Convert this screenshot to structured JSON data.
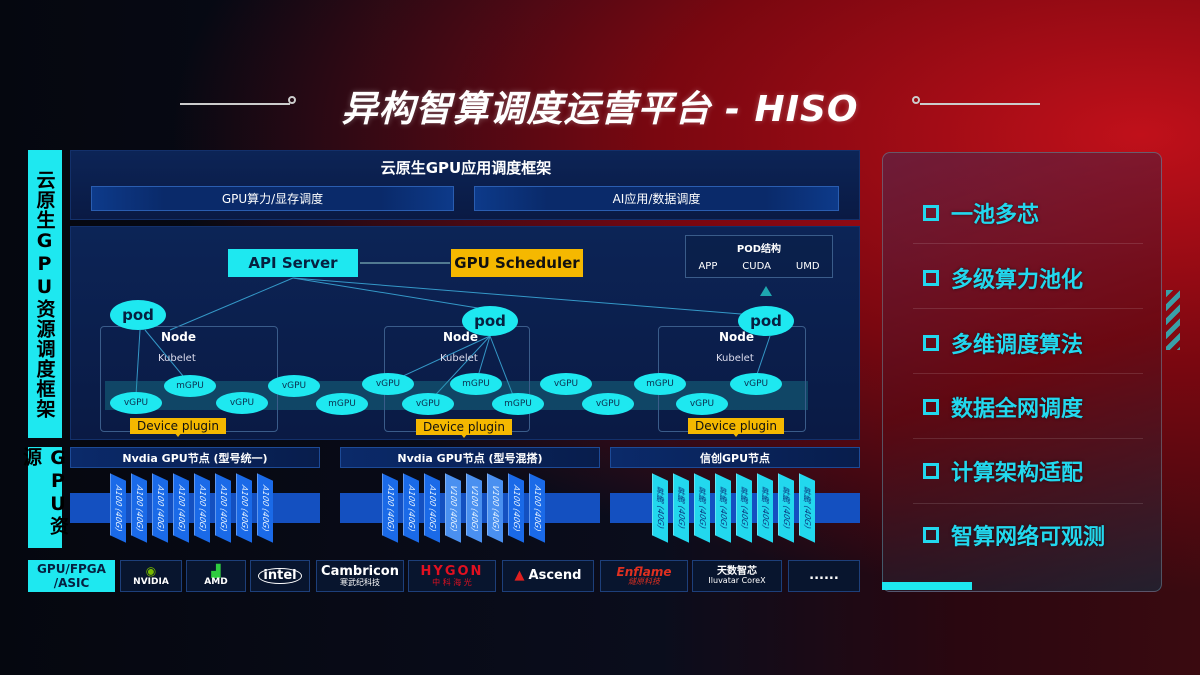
{
  "title": "异构智算调度运营平台 - HISO",
  "colors": {
    "cyan": "#1ee8f0",
    "yellow": "#f5b800",
    "blue": "#1450c0",
    "red": "#c0101a"
  },
  "left_labels": {
    "framework": "云原生GPU资源调度框架",
    "resources": "GPU资源",
    "hardware": "GPU/FPGA /ASIC"
  },
  "top_panel": {
    "title": "云原生GPU应用调度框架",
    "boxes": [
      "GPU算力/显存调度",
      "AI应用/数据调度"
    ]
  },
  "diagram": {
    "api_server": "API Server",
    "scheduler": "GPU Scheduler",
    "pod_struct": {
      "title": "POD结构",
      "items": [
        "APP",
        "CUDA",
        "UMD"
      ]
    },
    "pod": "pod",
    "node": "Node",
    "kubelet": "Kubelet",
    "device_plugin": "Device plugin",
    "gpus": [
      "vGPU",
      "mGPU",
      "vGPU",
      "vGPU",
      "mGPU",
      "vGPU",
      "vGPU",
      "mGPU",
      "mGPU",
      "vGPU",
      "mGPU",
      "vGPU",
      "vGPU",
      "vGPU"
    ]
  },
  "gpu_nodes": [
    {
      "title": "Nvdia GPU节点 (型号统一)",
      "cards": [
        "A100 (40G)",
        "A100 (40G)",
        "A100 (40G)",
        "A100 (40G)",
        "A100 (40G)",
        "A100 (40G)",
        "A100 (40G)",
        "A100 (40G)"
      ]
    },
    {
      "title": "Nvdia GPU节点 (型号混搭)",
      "cards": [
        "A100 (40G)",
        "A100 (40G)",
        "A100 (40G)",
        "V100 (40G)",
        "V100 (40G)",
        "V100 (40G)",
        "A100 (40G)",
        "A100 (40G)"
      ]
    },
    {
      "title": "信创GPU节点",
      "cards": [
        "昇腾 (40G)",
        "昇腾 (40G)",
        "昇腾 (40G)",
        "昇腾 (40G)",
        "昇腾 (40G)",
        "昇腾 (40G)",
        "昇腾 (40G)",
        "昇腾 (40G)"
      ]
    }
  ],
  "vendors": [
    {
      "name": "NVIDIA",
      "sub": ""
    },
    {
      "name": "AMD",
      "sub": ""
    },
    {
      "name": "intel",
      "sub": ""
    },
    {
      "name": "Cambricon",
      "sub": "寒武纪科技"
    },
    {
      "name": "HYGON",
      "sub": "中 科 海 光"
    },
    {
      "name": "Ascend",
      "sub": ""
    },
    {
      "name": "Enflame",
      "sub": "燧原科技"
    },
    {
      "name": "天数智芯",
      "sub": "Iluvatar CoreX"
    },
    {
      "name": "......",
      "sub": ""
    }
  ],
  "features": [
    "一池多芯",
    "多级算力池化",
    "多维调度算法",
    "数据全网调度",
    "计算架构适配",
    "智算网络可观测"
  ]
}
